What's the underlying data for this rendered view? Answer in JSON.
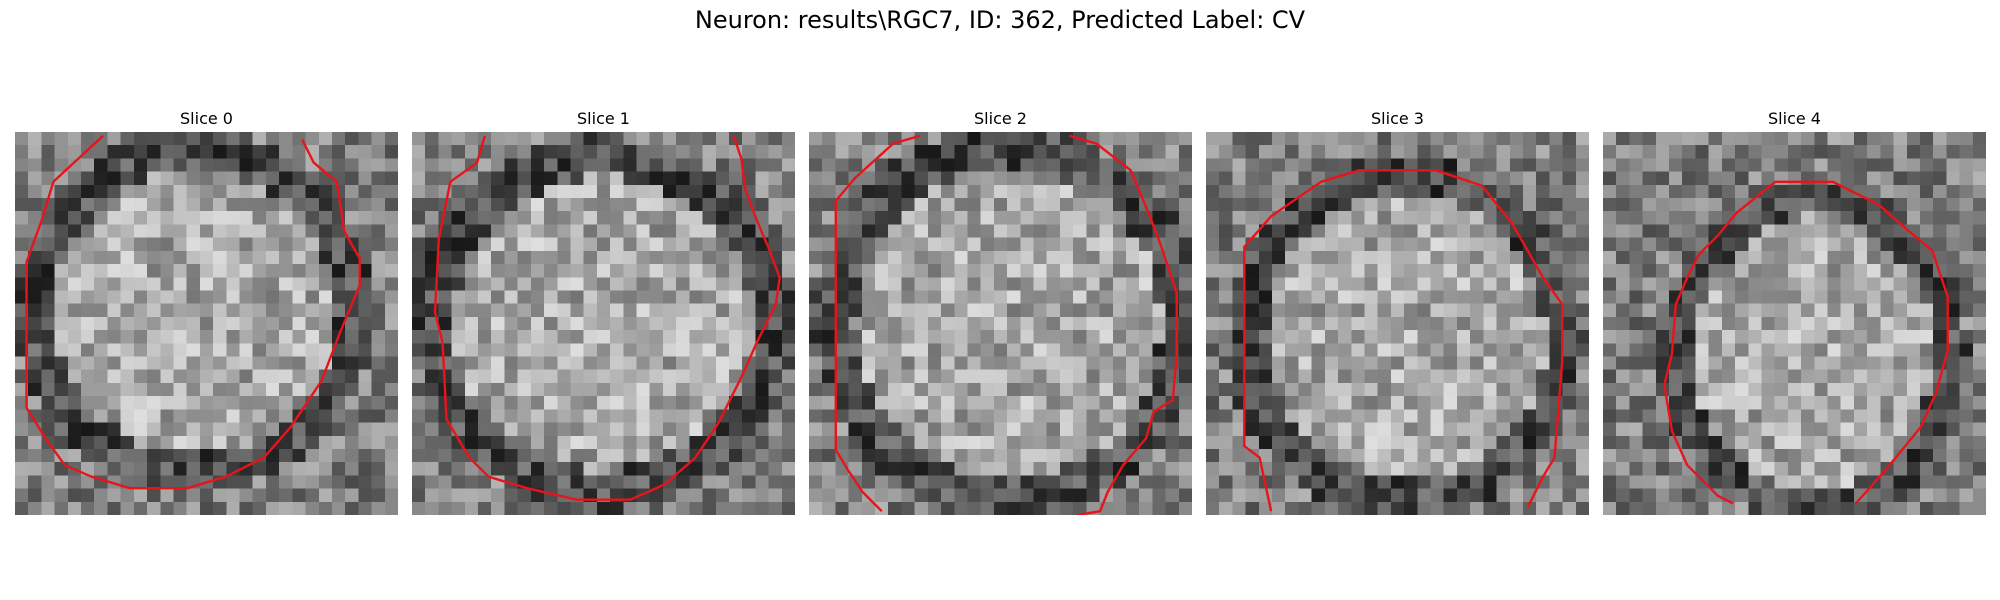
{
  "figure": {
    "title": "Neuron: results\\RGC7, ID: 362, Predicted Label: CV"
  },
  "panels": [
    {
      "title": "Slice 0"
    },
    {
      "title": "Slice 1"
    },
    {
      "title": "Slice 2"
    },
    {
      "title": "Slice 3"
    },
    {
      "title": "Slice 4"
    }
  ],
  "colors": {
    "contour": "#e8141b",
    "background": "#ffffff"
  }
}
